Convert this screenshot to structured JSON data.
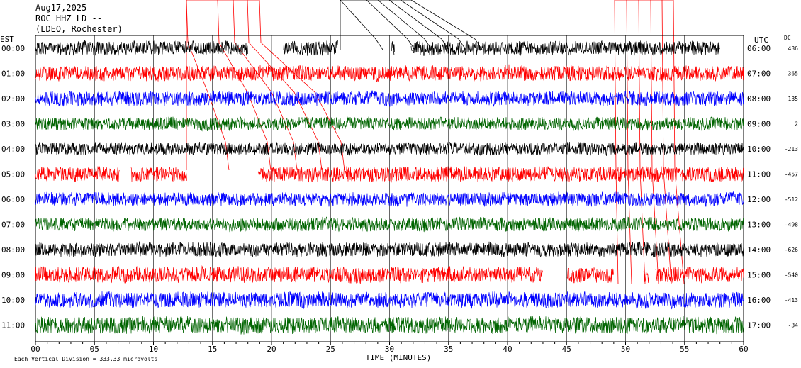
{
  "header": {
    "date": "Aug17,2025",
    "station": "ROC HHZ LD --",
    "network": "(LDEO, Rochester)"
  },
  "labels": {
    "left_tz": "EST",
    "right_tz": "UTC",
    "dc": "DC",
    "xlabel": "TIME (MINUTES)",
    "scale_note": "Each Vertical Division =  333.33 microvolts"
  },
  "colors": [
    "#000000",
    "#ff0000",
    "#0000ff",
    "#006400"
  ],
  "chart_data": {
    "type": "line",
    "title": "ROC HHZ LD --",
    "xlabel": "TIME (MINUTES)",
    "xlim": [
      0,
      60
    ],
    "x_ticks": [
      "00",
      "05",
      "10",
      "15",
      "20",
      "25",
      "30",
      "35",
      "40",
      "45",
      "50",
      "55",
      "60"
    ],
    "rows": [
      {
        "est": "00:00",
        "utc": "06:00",
        "dc": "436",
        "color_idx": 0,
        "amp": 0.9,
        "gaps": [
          [
            18,
            21
          ],
          [
            25.6,
            30.1
          ],
          [
            30.4,
            31.8
          ],
          [
            58,
            60
          ]
        ]
      },
      {
        "est": "01:00",
        "utc": "07:00",
        "dc": "365",
        "color_idx": 1,
        "amp": 0.95,
        "gaps": []
      },
      {
        "est": "02:00",
        "utc": "08:00",
        "dc": "135",
        "color_idx": 2,
        "amp": 0.9,
        "gaps": []
      },
      {
        "est": "03:00",
        "utc": "09:00",
        "dc": "2",
        "color_idx": 3,
        "amp": 0.8,
        "gaps": []
      },
      {
        "est": "04:00",
        "utc": "10:00",
        "dc": "-213",
        "color_idx": 0,
        "amp": 0.8,
        "gaps": []
      },
      {
        "est": "05:00",
        "utc": "11:00",
        "dc": "-457",
        "color_idx": 1,
        "amp": 0.95,
        "gaps": [
          [
            7.1,
            8.1
          ],
          [
            12.8,
            18.8
          ]
        ]
      },
      {
        "est": "06:00",
        "utc": "12:00",
        "dc": "-512",
        "color_idx": 2,
        "amp": 0.85,
        "gaps": []
      },
      {
        "est": "07:00",
        "utc": "13:00",
        "dc": "-498",
        "color_idx": 3,
        "amp": 0.85,
        "gaps": []
      },
      {
        "est": "08:00",
        "utc": "14:00",
        "dc": "-626",
        "color_idx": 0,
        "amp": 0.9,
        "gaps": []
      },
      {
        "est": "09:00",
        "utc": "15:00",
        "dc": "-540",
        "color_idx": 1,
        "amp": 1.0,
        "gaps": [
          [
            43,
            45
          ],
          [
            49,
            51.5
          ],
          [
            52,
            52.5
          ]
        ]
      },
      {
        "est": "10:00",
        "utc": "16:00",
        "dc": "-413",
        "color_idx": 2,
        "amp": 1.0,
        "gaps": []
      },
      {
        "est": "11:00",
        "utc": "17:00",
        "dc": "-34",
        "color_idx": 3,
        "amp": 1.05,
        "gaps": []
      }
    ]
  }
}
